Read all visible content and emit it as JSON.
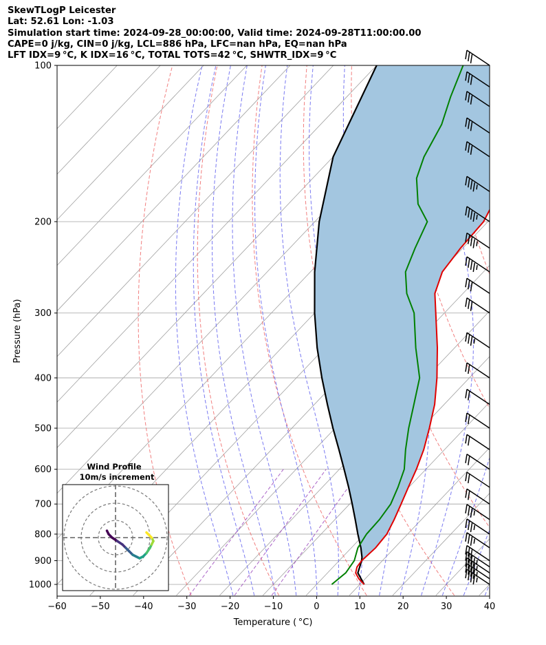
{
  "header": {
    "line1": "SkewTLogP Leicester",
    "line2": "Lat: 52.61   Lon: -1.03",
    "line3": "Simulation start time: 2024-09-28_00:00:00, Valid time: 2024-09-28T11:00:00.00",
    "line4": "CAPE=0 j/kg, CIN=0 j/kg, LCL=886 hPa, LFC=nan hPa, EQ=nan hPa",
    "line5": "LFT IDX=9 °C, K IDX=16 °C, TOTAL TOTS=42 °C, SHWTR_IDX=9 °C"
  },
  "chart_data": {
    "type": "skewt",
    "xlabel": "Temperature ( °C)",
    "ylabel": "Pressure (hPa)",
    "xlim": [
      -60,
      40
    ],
    "ylim": [
      1050,
      100
    ],
    "x_ticks": [
      -60,
      -50,
      -40,
      -30,
      -20,
      -10,
      0,
      10,
      20,
      30,
      40
    ],
    "x_tick_labels": [
      "−60",
      "−50",
      "−40",
      "−30",
      "−20",
      "−10",
      "0",
      "10",
      "20",
      "30",
      "40"
    ],
    "y_ticks": [
      1000,
      900,
      800,
      700,
      600,
      500,
      400,
      300,
      200,
      100
    ],
    "y_tick_labels": [
      "1000",
      "900",
      "800",
      "700",
      "600",
      "500",
      "400",
      "300",
      "200",
      "100"
    ],
    "grid": true,
    "colors": {
      "temperature": "#e00000",
      "dewpoint": "#008000",
      "parcel": "#000000",
      "fill": "#a3c6e0",
      "dry_adiabat": "#f07070",
      "moist_adiabat": "#6a6af0",
      "mixing_ratio": "#a050c0",
      "isotherm": "#a0a0a0"
    },
    "temperature": [
      [
        1000,
        11
      ],
      [
        975,
        8.5
      ],
      [
        950,
        6.5
      ],
      [
        925,
        5.5
      ],
      [
        900,
        5.2
      ],
      [
        850,
        5.6
      ],
      [
        800,
        5.2
      ],
      [
        750,
        3.7
      ],
      [
        700,
        1.9
      ],
      [
        650,
        -0.1
      ],
      [
        600,
        -2.2
      ],
      [
        550,
        -4.8
      ],
      [
        500,
        -8.2
      ],
      [
        450,
        -12.2
      ],
      [
        400,
        -17.5
      ],
      [
        350,
        -24.0
      ],
      [
        300,
        -32.0
      ],
      [
        275,
        -36.5
      ],
      [
        250,
        -39.5
      ],
      [
        225,
        -40.5
      ],
      [
        200,
        -41.0
      ],
      [
        175,
        -44.0
      ],
      [
        150,
        -48.0
      ],
      [
        130,
        -52.0
      ],
      [
        115,
        -56.0
      ],
      [
        100,
        -61.0
      ]
    ],
    "dewpoint": [
      [
        1000,
        3.5
      ],
      [
        950,
        4.2
      ],
      [
        900,
        3.5
      ],
      [
        850,
        1.5
      ],
      [
        800,
        0.5
      ],
      [
        750,
        0.3
      ],
      [
        700,
        -0.5
      ],
      [
        650,
        -2.5
      ],
      [
        600,
        -5.0
      ],
      [
        550,
        -9.0
      ],
      [
        500,
        -13.0
      ],
      [
        450,
        -17.0
      ],
      [
        400,
        -21.5
      ],
      [
        350,
        -29.0
      ],
      [
        300,
        -37.0
      ],
      [
        275,
        -43.0
      ],
      [
        250,
        -48.0
      ],
      [
        225,
        -51.0
      ],
      [
        200,
        -54.0
      ],
      [
        185,
        -60.0
      ],
      [
        165,
        -66.0
      ],
      [
        150,
        -69.0
      ],
      [
        130,
        -72.0
      ],
      [
        115,
        -76.0
      ],
      [
        100,
        -80.0
      ]
    ],
    "parcel": [
      [
        1000,
        11
      ],
      [
        950,
        7
      ],
      [
        900,
        5.2
      ],
      [
        886,
        4.5
      ],
      [
        850,
        2.2
      ],
      [
        800,
        -1.5
      ],
      [
        750,
        -5.3
      ],
      [
        700,
        -9.4
      ],
      [
        650,
        -13.9
      ],
      [
        600,
        -18.9
      ],
      [
        550,
        -24.4
      ],
      [
        500,
        -30.5
      ],
      [
        450,
        -37.0
      ],
      [
        400,
        -44.1
      ],
      [
        350,
        -51.8
      ],
      [
        300,
        -60.0
      ],
      [
        250,
        -69.0
      ],
      [
        200,
        -79.0
      ],
      [
        150,
        -90.0
      ],
      [
        100,
        -100.0
      ]
    ],
    "wind_barbs": [
      [
        1000,
        35
      ],
      [
        975,
        35
      ],
      [
        950,
        35
      ],
      [
        925,
        35
      ],
      [
        900,
        30
      ],
      [
        850,
        25
      ],
      [
        800,
        25
      ],
      [
        750,
        25
      ],
      [
        700,
        20
      ],
      [
        650,
        20
      ],
      [
        600,
        20
      ],
      [
        550,
        20
      ],
      [
        500,
        20
      ],
      [
        450,
        20
      ],
      [
        400,
        20
      ],
      [
        350,
        25
      ],
      [
        300,
        30
      ],
      [
        275,
        30
      ],
      [
        250,
        35
      ],
      [
        225,
        35
      ],
      [
        200,
        35
      ],
      [
        175,
        35
      ],
      [
        150,
        30
      ],
      [
        135,
        30
      ],
      [
        120,
        30
      ],
      [
        110,
        30
      ],
      [
        100,
        30
      ]
    ],
    "inset": {
      "title": "Wind Profile",
      "subtitle": "10m/s increment",
      "hodograph_uv": [
        [
          -5,
          4
        ],
        [
          -4,
          2
        ],
        [
          -2,
          0
        ],
        [
          1,
          -2
        ],
        [
          4,
          -4
        ],
        [
          6,
          -6
        ],
        [
          8,
          -8
        ],
        [
          10,
          -10
        ],
        [
          12,
          -11
        ],
        [
          14,
          -12
        ],
        [
          16,
          -11
        ],
        [
          18,
          -9
        ],
        [
          20,
          -6
        ],
        [
          21,
          -4
        ],
        [
          22,
          -2
        ],
        [
          21,
          0
        ],
        [
          19,
          2
        ],
        [
          18,
          3
        ]
      ]
    }
  }
}
